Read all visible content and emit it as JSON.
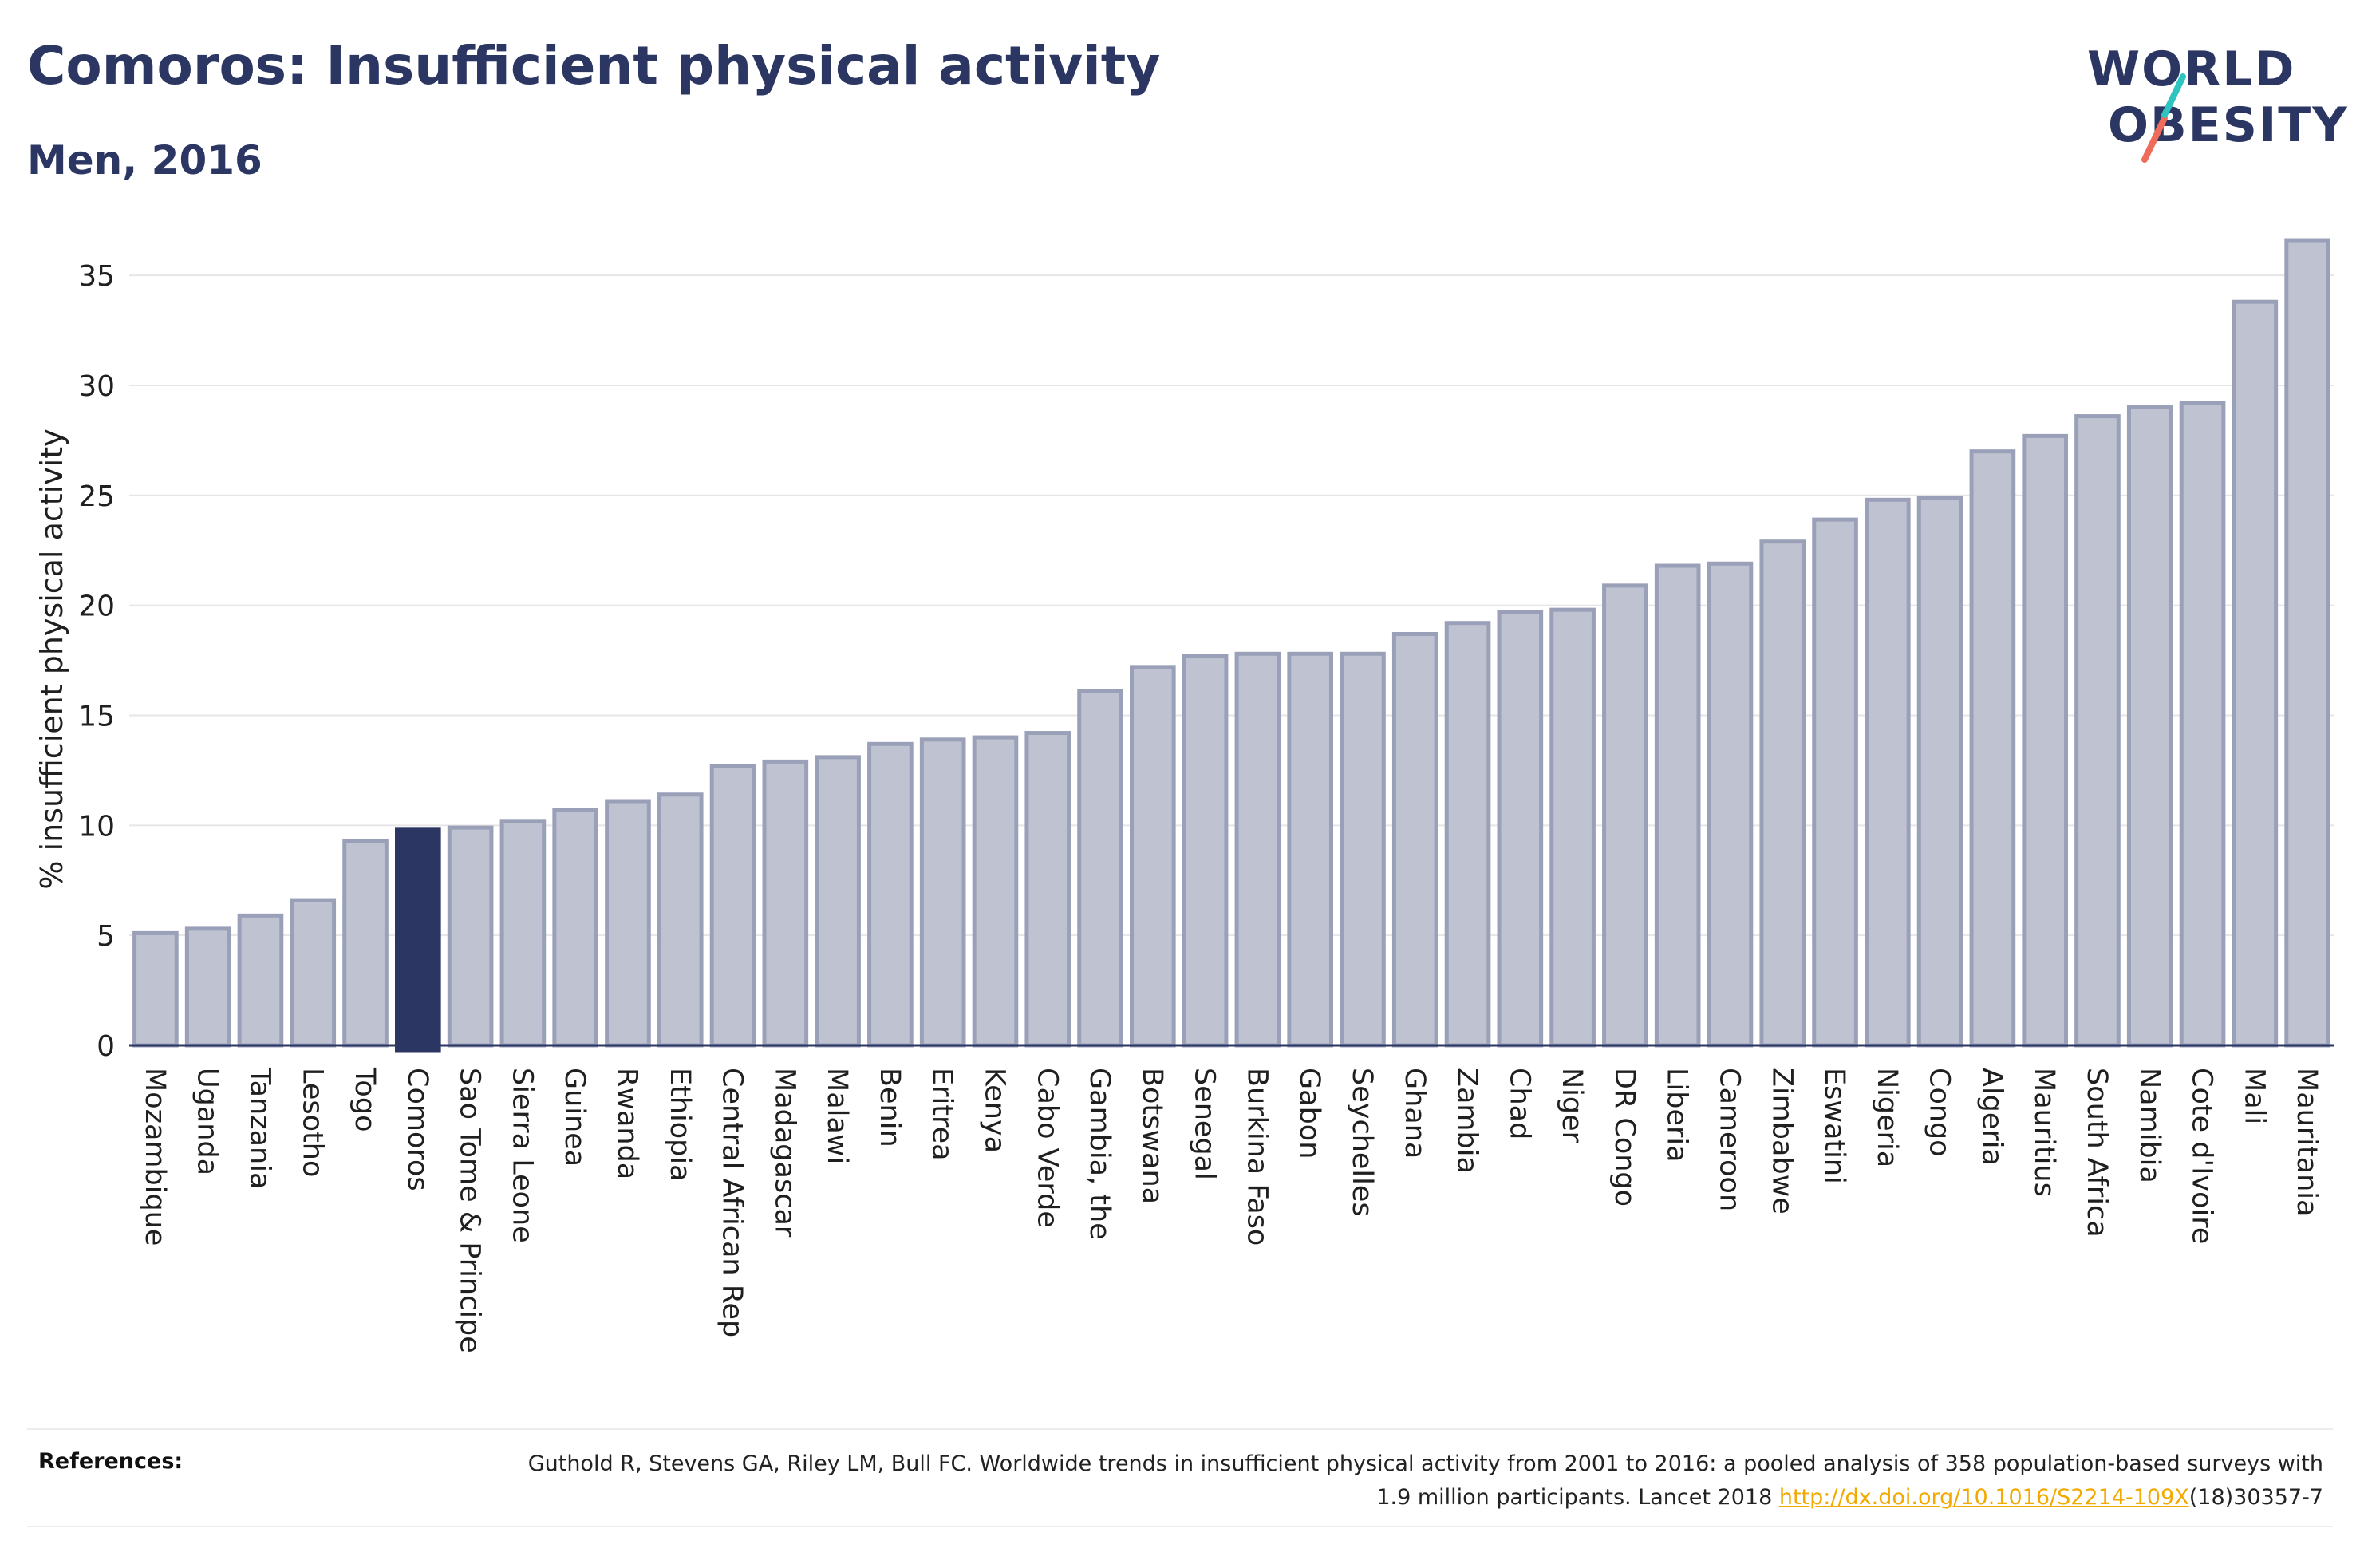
{
  "header": {
    "title": "Comoros: Insufficient physical activity",
    "subtitle": "Men, 2016"
  },
  "logo": {
    "line1": "WORLD",
    "line2": "OBESITY",
    "colors": {
      "text": "#2b3663",
      "slash_top": "#2ec4c0",
      "slash_bottom": "#ef6b5a"
    }
  },
  "chart_data": {
    "type": "bar",
    "title": "Comoros: Insufficient physical activity",
    "subtitle": "Men, 2016",
    "xlabel": "",
    "ylabel": "% insufficient physical activity",
    "ylim": [
      0,
      37
    ],
    "yticks": [
      0,
      5,
      10,
      15,
      20,
      25,
      30,
      35
    ],
    "grid": true,
    "highlight": "Comoros",
    "colors": {
      "bar": "#bfc3d1",
      "bar_edge": "#9aa0b8",
      "highlight": "#2b3663",
      "axis": "#2b3663",
      "grid": "#e6e6e6"
    },
    "categories": [
      "Mozambique",
      "Uganda",
      "Tanzania",
      "Lesotho",
      "Togo",
      "Comoros",
      "Sao Tome & Principe",
      "Sierra Leone",
      "Guinea",
      "Rwanda",
      "Ethiopia",
      "Central African Rep",
      "Madagascar",
      "Malawi",
      "Benin",
      "Eritrea",
      "Kenya",
      "Cabo Verde",
      "Gambia, the",
      "Botswana",
      "Senegal",
      "Burkina Faso",
      "Gabon",
      "Seychelles",
      "Ghana",
      "Zambia",
      "Chad",
      "Niger",
      "DR Congo",
      "Liberia",
      "Cameroon",
      "Zimbabwe",
      "Eswatini",
      "Nigeria",
      "Congo",
      "Algeria",
      "Mauritius",
      "South Africa",
      "Namibia",
      "Cote d'Ivoire",
      "Mali",
      "Mauritania"
    ],
    "values": [
      5.1,
      5.3,
      5.9,
      6.6,
      9.3,
      9.8,
      9.9,
      10.2,
      10.7,
      11.1,
      11.4,
      12.7,
      12.9,
      13.1,
      13.7,
      13.9,
      14.0,
      14.2,
      16.1,
      17.2,
      17.7,
      17.8,
      17.8,
      17.8,
      18.7,
      19.2,
      19.7,
      19.8,
      20.9,
      21.8,
      21.9,
      22.9,
      23.9,
      24.8,
      24.9,
      27.0,
      27.7,
      28.6,
      29.0,
      29.2,
      33.8,
      36.6
    ]
  },
  "references": {
    "label": "References:",
    "text_before": "Guthold R, Stevens GA, Riley LM, Bull FC. Worldwide trends in insufficient physical activity from 2001 to 2016: a pooled analysis of 358 population-based surveys with 1.9 million participants. Lancet 2018 ",
    "link_text": "http://dx.doi.org/10.1016/S2214-109X",
    "text_after": "(18)30357-7",
    "link_color": "#f2a900"
  }
}
